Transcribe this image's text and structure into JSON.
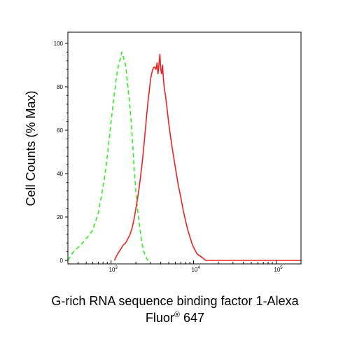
{
  "chart_data": {
    "type": "line",
    "title": "",
    "ylabel": "Cell Counts (% Max)",
    "xlabel_line1": "G-rich RNA sequence binding factor 1-Alexa",
    "xlabel_line2_main": "Fluor",
    "xlabel_line2_sup": "®",
    "xlabel_line2_tail": " 647",
    "x_scale": "log",
    "xlim": [
      300,
      200000
    ],
    "ylim": [
      0,
      100
    ],
    "yticks": [
      0,
      20,
      40,
      60,
      80,
      100
    ],
    "ytick_labels": [
      "0",
      "20",
      "40",
      "60",
      "80",
      "100"
    ],
    "xticks": [
      1000,
      10000,
      100000
    ],
    "xtick_labels": [
      {
        "base": "10",
        "exp": "3"
      },
      {
        "base": "10",
        "exp": "4"
      },
      {
        "base": "10",
        "exp": "5"
      }
    ],
    "grid": false,
    "legend": "none",
    "series": [
      {
        "color": "#33ee22",
        "style": "dashed",
        "x": [
          300,
          350,
          400,
          450,
          500,
          550,
          600,
          650,
          700,
          750,
          800,
          850,
          900,
          950,
          1000,
          1050,
          1100,
          1150,
          1200,
          1250,
          1300,
          1350,
          1400,
          1450,
          1500,
          1550,
          1600,
          1650,
          1700,
          1750,
          1800,
          1850,
          1900,
          1950,
          2000,
          2100,
          2200,
          2300,
          2400,
          2500,
          2600,
          2700,
          2800,
          2900,
          3000
        ],
        "y": [
          0,
          4,
          6,
          8,
          10,
          12,
          14,
          18,
          22,
          28,
          34,
          40,
          48,
          56,
          64,
          71,
          77,
          83,
          88,
          91,
          93,
          96,
          94,
          92,
          90,
          85,
          80,
          75,
          70,
          64,
          57,
          50,
          43,
          37,
          31,
          23,
          17,
          11,
          7,
          4,
          2,
          1,
          0,
          0,
          0
        ]
      },
      {
        "color": "#ee2222",
        "style": "solid",
        "x": [
          1100,
          1200,
          1300,
          1400,
          1500,
          1600,
          1700,
          1800,
          1900,
          2000,
          2100,
          2200,
          2300,
          2400,
          2500,
          2600,
          2700,
          2800,
          2900,
          3000,
          3100,
          3200,
          3300,
          3400,
          3500,
          3600,
          3700,
          3800,
          3900,
          4000,
          4100,
          4200,
          4300,
          4400,
          4600,
          4800,
          5000,
          5300,
          5600,
          6000,
          6500,
          7000,
          7500,
          8000,
          8500,
          9000,
          9500,
          10000,
          11000,
          12000,
          13000,
          14000,
          15000,
          20000,
          50000,
          100000,
          200000
        ],
        "y": [
          0,
          3,
          5,
          7,
          8,
          10,
          12,
          15,
          19,
          24,
          29,
          34,
          40,
          46,
          53,
          60,
          67,
          73,
          78,
          83,
          86,
          88,
          89,
          89,
          88,
          91,
          86,
          90,
          95,
          88,
          86,
          90,
          84,
          80,
          75,
          69,
          63,
          56,
          50,
          43,
          35,
          29,
          23,
          18,
          14,
          11,
          8,
          6,
          3,
          2,
          1,
          0,
          0,
          0,
          0,
          0,
          0
        ]
      }
    ]
  }
}
